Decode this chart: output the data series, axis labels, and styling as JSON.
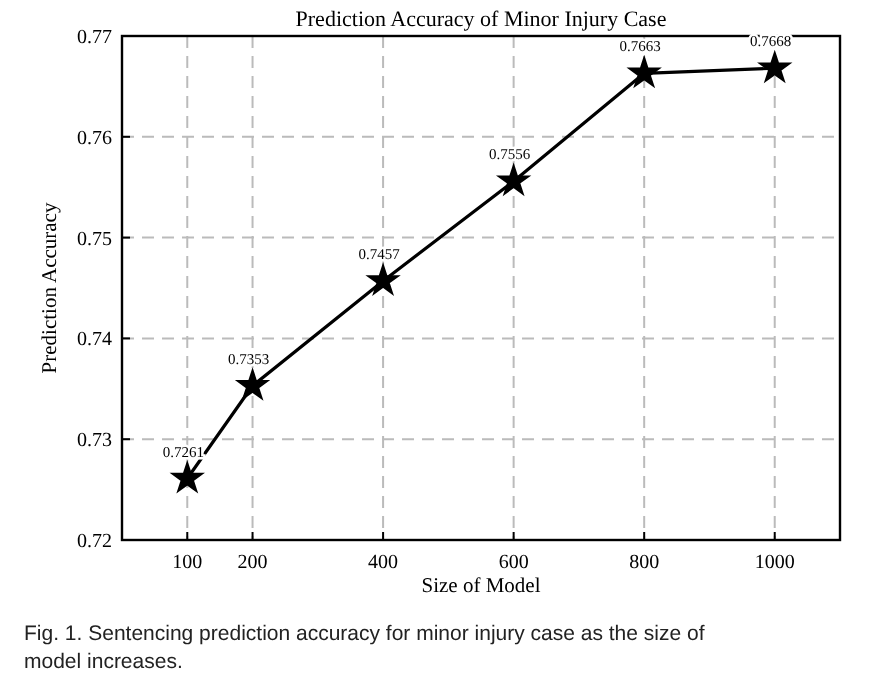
{
  "chart_data": {
    "type": "line",
    "title": "Prediction Accuracy of Minor Injury Case",
    "xlabel": "Size of Model",
    "ylabel": "Prediction Accuracy",
    "x": [
      100,
      200,
      400,
      600,
      800,
      1000
    ],
    "series": [
      {
        "color": "#000000",
        "values": [
          0.7261,
          0.7353,
          0.7457,
          0.7556,
          0.7663,
          0.7668
        ]
      }
    ],
    "xlim": [
      0,
      1100
    ],
    "xticks": [
      100,
      200,
      400,
      600,
      800,
      1000
    ],
    "ylim": [
      0.72,
      0.77
    ],
    "yticks": [
      0.72,
      0.73,
      0.74,
      0.75,
      0.76,
      0.77
    ],
    "grid": true,
    "marker": "star",
    "line_style": "solid",
    "data_labels": true,
    "annotations": [
      "Fig. 1. Sentencing prediction accuracy for minor injury case as the size of model increases."
    ]
  }
}
